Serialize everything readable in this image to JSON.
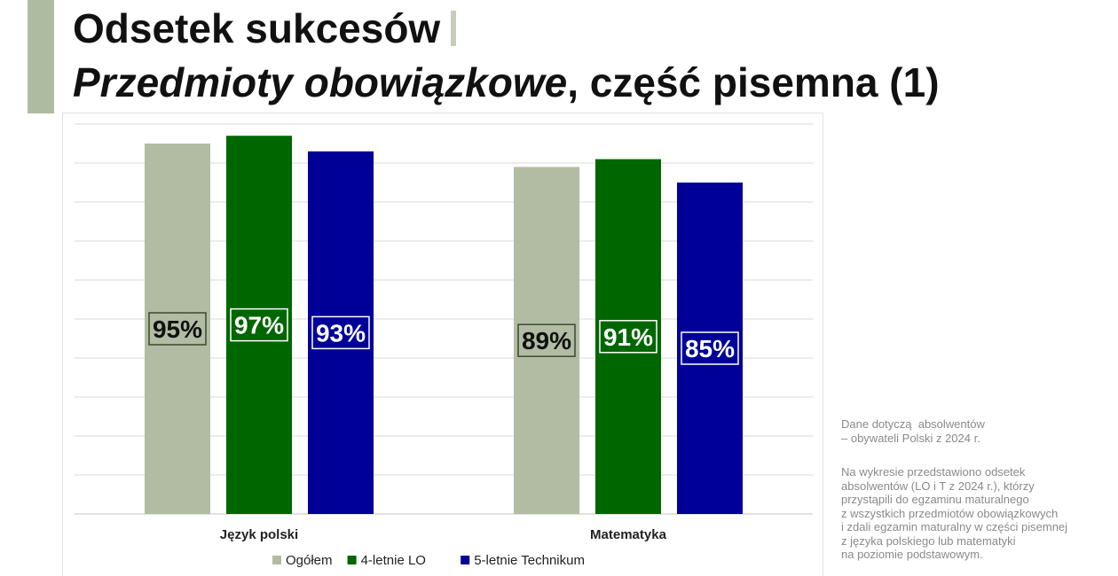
{
  "title": "Odsetek sukcesów",
  "subtitle_italic": "Przedmioty obowiązkowe",
  "subtitle_rest": ", część pisemna (1)",
  "chart_data": {
    "type": "bar",
    "categories": [
      "Język polski",
      "Matematyka"
    ],
    "series": [
      {
        "name": "Ogółem",
        "color": "#b1bca3",
        "values": [
          95,
          89
        ],
        "labels": [
          "95%",
          "89%"
        ]
      },
      {
        "name": "4-letnie LO",
        "color": "#006600",
        "values": [
          97,
          91
        ],
        "labels": [
          "97%",
          "91%"
        ]
      },
      {
        "name": "5-letnie Technikum",
        "color": "#000099",
        "values": [
          93,
          85
        ],
        "labels": [
          "93%",
          "85%"
        ]
      }
    ],
    "ylim": [
      0,
      100
    ],
    "grid": true,
    "legend_position": "bottom",
    "data_label_position": "center"
  },
  "notes": {
    "note1": "Dane dotyczą  absolwentów\n– obywateli Polski z 2024 r.",
    "note2": "Na wykresie przedstawiono odsetek\nabsolwentów (LO i T z 2024 r.), którzy\nprzystąpili do egzaminu maturalnego\nz wszystkich przedmiotów obowiązkowych\ni zdali egzamin maturalny w części pisemnej\nz języka polskiego lub matematyki\nna poziomie podstawowym."
  }
}
